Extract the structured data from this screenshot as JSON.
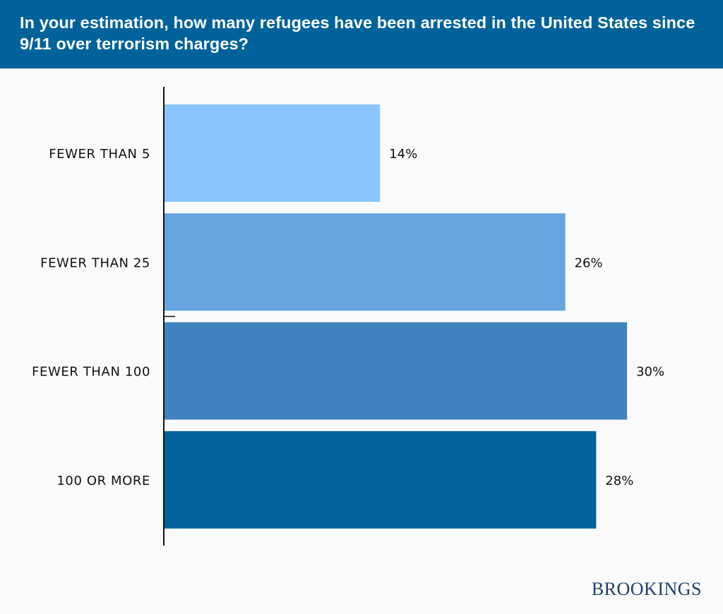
{
  "header": {
    "title": "In your estimation, how many refugees have been arrested in the United States since 9/11 over terrorism charges?"
  },
  "brand": {
    "name": "BROOKINGS"
  },
  "chart_data": {
    "type": "bar",
    "orientation": "horizontal",
    "title": "In your estimation, how many refugees have been arrested in the United States since 9/11 over terrorism charges?",
    "xlabel": "",
    "ylabel": "",
    "categories": [
      "FEWER THAN 5",
      "FEWER THAN 25",
      "FEWER THAN 100",
      "100 OR MORE"
    ],
    "values": [
      14,
      26,
      30,
      28
    ],
    "data_labels": [
      "14%",
      "26%",
      "30%",
      "28%"
    ],
    "colors": [
      "#8bc4fd",
      "#66a5e2",
      "#3f82c0",
      "#00639c"
    ],
    "unit": "%",
    "xlim": [
      0,
      30
    ],
    "grid": false,
    "legend": "none"
  }
}
